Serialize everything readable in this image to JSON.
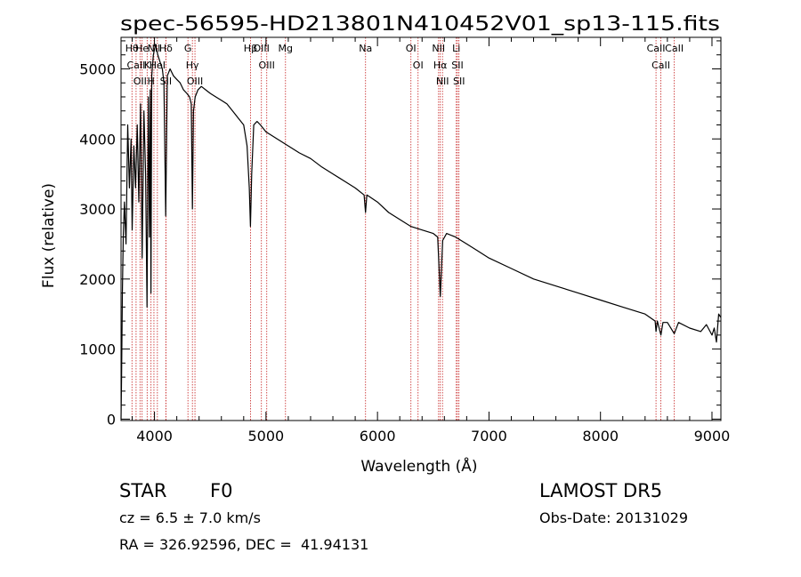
{
  "chart_data": {
    "type": "line",
    "title": "spec-56595-HD213801N410452V01_sp13-115.fits",
    "xlabel": "Wavelength (Å)",
    "ylabel": "Flux (relative)",
    "xlim": [
      3700,
      9080
    ],
    "ylim": [
      -20,
      5450
    ],
    "xticks": [
      4000,
      5000,
      6000,
      7000,
      8000,
      9000
    ],
    "yticks": [
      0,
      1000,
      2000,
      3000,
      4000,
      5000
    ],
    "grid": false,
    "series": [
      {
        "x": [
          3700,
          3705,
          3712,
          3720,
          3730,
          3745,
          3760,
          3775,
          3790,
          3800,
          3815,
          3830,
          3845,
          3860,
          3875,
          3889,
          3905,
          3920,
          3933,
          3945,
          3955,
          3962,
          3968,
          3975,
          3990,
          4010,
          4030,
          4050,
          4070,
          4085,
          4101,
          4115,
          4140,
          4170,
          4200,
          4230,
          4260,
          4290,
          4315,
          4330,
          4340,
          4350,
          4365,
          4390,
          4420,
          4460,
          4500,
          4550,
          4600,
          4650,
          4700,
          4750,
          4800,
          4830,
          4850,
          4861,
          4872,
          4890,
          4920,
          4950,
          5000,
          5050,
          5100,
          5200,
          5300,
          5400,
          5500,
          5600,
          5700,
          5800,
          5880,
          5893,
          5905,
          6000,
          6100,
          6200,
          6300,
          6400,
          6500,
          6540,
          6563,
          6585,
          6620,
          6700,
          6800,
          6900,
          7000,
          7200,
          7400,
          7600,
          7800,
          8000,
          8200,
          8400,
          8490,
          8498,
          8510,
          8542,
          8560,
          8600,
          8662,
          8700,
          8800,
          8900,
          8950,
          9000,
          9020,
          9040,
          9060,
          9080
        ],
        "y": [
          0,
          600,
          1800,
          2600,
          3100,
          2500,
          4200,
          3300,
          4000,
          2700,
          3900,
          3300,
          4200,
          3100,
          4500,
          2300,
          4400,
          3500,
          1600,
          4600,
          2600,
          4700,
          1800,
          4900,
          5200,
          5350,
          5200,
          5100,
          5000,
          4800,
          2900,
          4900,
          5000,
          4900,
          4850,
          4800,
          4700,
          4650,
          4600,
          4500,
          3000,
          4400,
          4600,
          4700,
          4750,
          4700,
          4650,
          4600,
          4550,
          4500,
          4400,
          4300,
          4200,
          3900,
          3300,
          2750,
          3500,
          4200,
          4250,
          4200,
          4100,
          4050,
          4000,
          3900,
          3800,
          3720,
          3600,
          3500,
          3400,
          3300,
          3200,
          2950,
          3200,
          3100,
          2950,
          2850,
          2750,
          2700,
          2650,
          2600,
          1750,
          2550,
          2650,
          2600,
          2500,
          2400,
          2300,
          2150,
          2000,
          1900,
          1800,
          1700,
          1600,
          1500,
          1400,
          1250,
          1400,
          1200,
          1380,
          1380,
          1220,
          1380,
          1300,
          1250,
          1350,
          1200,
          1300,
          1100,
          1500,
          1450
        ]
      }
    ],
    "lines": [
      {
        "x": 3798,
        "label": "Hθ"
      },
      {
        "x": 3835,
        "label": "CaII"
      },
      {
        "x": 3870,
        "label": "OII"
      },
      {
        "x": 3889,
        "label": "He"
      },
      {
        "x": 3934,
        "label": "K"
      },
      {
        "x": 3969,
        "label": "H"
      },
      {
        "x": 3995,
        "label": "NII"
      },
      {
        "x": 4026,
        "label": "HeI"
      },
      {
        "x": 4102,
        "label": "Hδ"
      },
      {
        "x": 4102,
        "label": "SII"
      },
      {
        "x": 4300,
        "label": "G"
      },
      {
        "x": 4340,
        "label": "Hγ"
      },
      {
        "x": 4363,
        "label": "OIII"
      },
      {
        "x": 4861,
        "label": "Hβ"
      },
      {
        "x": 4959,
        "label": "OIII"
      },
      {
        "x": 5007,
        "label": "OIII"
      },
      {
        "x": 5175,
        "label": "Mg"
      },
      {
        "x": 5893,
        "label": "Na"
      },
      {
        "x": 6300,
        "label": "OI"
      },
      {
        "x": 6364,
        "label": "OI"
      },
      {
        "x": 6548,
        "label": "NII"
      },
      {
        "x": 6563,
        "label": "Hα"
      },
      {
        "x": 6583,
        "label": "NII"
      },
      {
        "x": 6707,
        "label": "Li"
      },
      {
        "x": 6717,
        "label": "SII"
      },
      {
        "x": 6731,
        "label": "SII"
      },
      {
        "x": 8498,
        "label": "CaII"
      },
      {
        "x": 8542,
        "label": "CaII"
      },
      {
        "x": 8662,
        "label": "CaII"
      }
    ]
  },
  "info": {
    "object_type": "STAR",
    "subclass": "F0",
    "survey": "LAMOST DR5",
    "redshift": "cz = 6.5 ± 7.0 km/s",
    "obs_date": "Obs-Date: 20131029",
    "coords": "RA = 326.92596, DEC =  41.94131"
  }
}
